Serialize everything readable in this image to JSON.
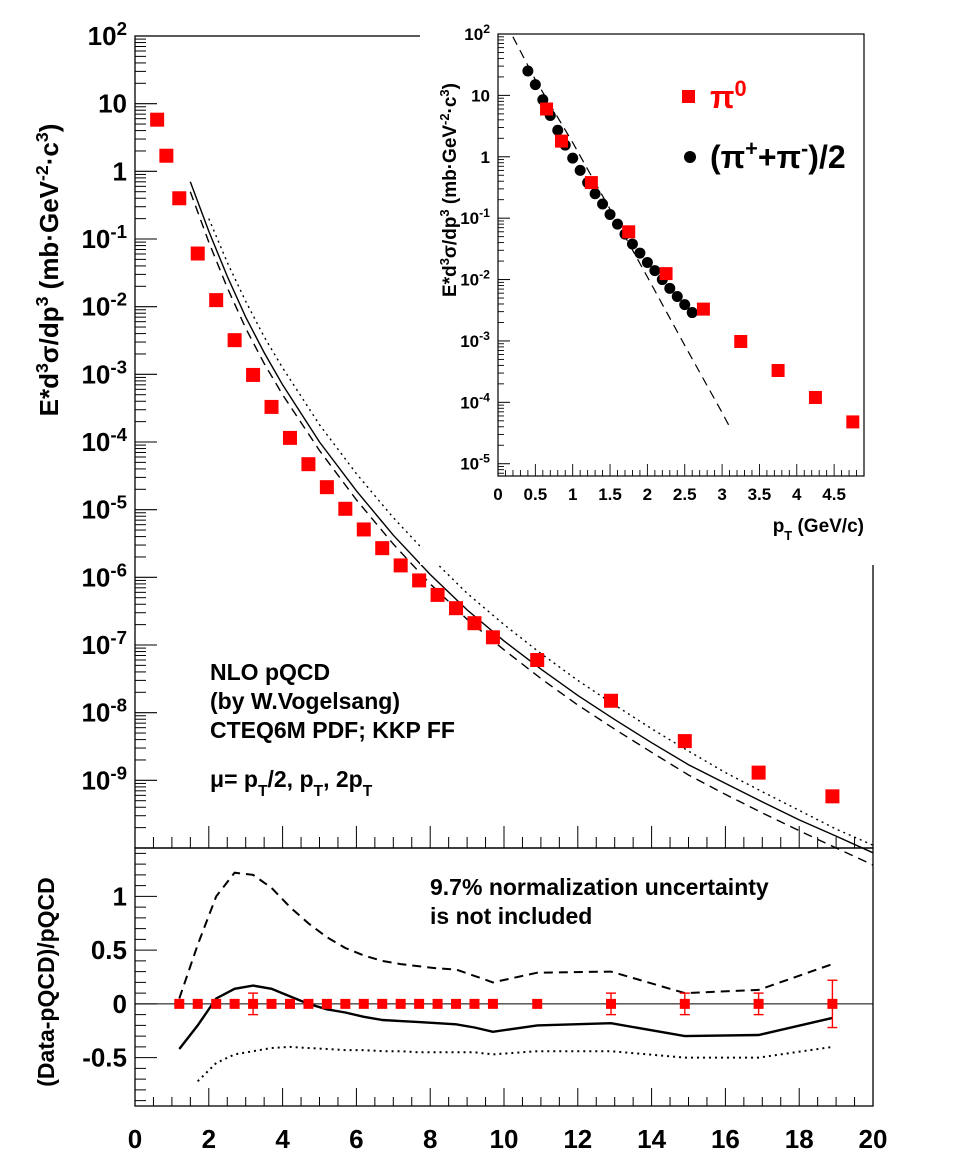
{
  "chart_data": [
    {
      "id": "main",
      "type": "scatter",
      "ylabel_parts": [
        "E*d",
        "3",
        "σ/dp",
        "3",
        " (mb·GeV",
        "-2",
        "·c",
        "3",
        ")"
      ],
      "xlim": [
        0,
        20
      ],
      "ylog": true,
      "ylim_exp": [
        -10,
        2
      ],
      "ytick_exponents": [
        -9,
        -8,
        -7,
        -6,
        -5,
        -4,
        -3,
        -2,
        -1,
        0,
        1,
        2
      ],
      "ytick_special": {
        "0": "1",
        "1": "10"
      },
      "ytick_base": "10",
      "series": [
        {
          "name": "π0",
          "marker": "square",
          "color": "#ff0000",
          "x": [
            0.6,
            0.85,
            1.2,
            1.7,
            2.2,
            2.7,
            3.2,
            3.7,
            4.2,
            4.7,
            5.2,
            5.7,
            6.2,
            6.7,
            7.2,
            7.7,
            8.2,
            8.7,
            9.2,
            9.7,
            10.9,
            12.9,
            14.9,
            16.9,
            18.9
          ],
          "y": [
            5.8,
            1.7,
            0.4,
            0.061,
            0.0125,
            0.0032,
            0.00098,
            0.00033,
            0.000115,
            4.7e-05,
            2.15e-05,
            1.03e-05,
            5.1e-06,
            2.7e-06,
            1.5e-06,
            9e-07,
            5.5e-07,
            3.5e-07,
            2.1e-07,
            1.3e-07,
            6e-08,
            1.5e-08,
            3.8e-09,
            1.3e-09,
            5.8e-10
          ]
        }
      ],
      "curves": [
        {
          "name": "pQCD mu=pT",
          "style": "solid",
          "x": [
            1.5,
            2,
            2.5,
            3,
            3.5,
            4,
            5,
            6,
            7,
            8,
            9,
            10,
            11,
            12,
            13,
            14,
            15,
            16,
            17,
            18,
            19,
            20
          ],
          "y": [
            0.7,
            0.13,
            0.028,
            0.007,
            0.0021,
            0.0007,
            0.0001,
            1.9e-05,
            4.2e-06,
            1.1e-06,
            3.3e-07,
            1.15e-07,
            4.4e-08,
            1.8e-08,
            7.9e-09,
            3.6e-09,
            1.7e-09,
            9e-10,
            4.8e-10,
            2.6e-10,
            1.5e-10,
            8.5e-11
          ]
        },
        {
          "name": "pQCD mu=2pT",
          "style": "dashed",
          "x": [
            1.5,
            2,
            2.5,
            3,
            3.5,
            4,
            5,
            6,
            7,
            8,
            9,
            10,
            11,
            12,
            13,
            14,
            15,
            16,
            17,
            18,
            19,
            20
          ],
          "y": [
            0.5,
            0.09,
            0.019,
            0.0048,
            0.00145,
            0.0005,
            7.5e-05,
            1.4e-05,
            3.1e-06,
            8e-07,
            2.4e-07,
            8.5e-08,
            3.2e-08,
            1.3e-08,
            5.7e-09,
            2.6e-09,
            1.2e-09,
            6.2e-10,
            3.3e-10,
            1.8e-10,
            1e-10,
            5.6e-11
          ]
        },
        {
          "name": "pQCD mu=pT/2",
          "style": "dotted",
          "x": [
            2,
            2.5,
            3,
            3.5,
            4,
            5,
            6,
            7,
            8,
            9,
            10,
            11,
            12,
            13,
            14,
            15,
            16,
            17,
            18,
            19,
            20
          ],
          "y": [
            0.2,
            0.045,
            0.012,
            0.0036,
            0.00125,
            0.00018,
            3.4e-05,
            7.6e-06,
            2e-06,
            5.8e-07,
            2e-07,
            7.5e-08,
            3e-08,
            1.3e-08,
            5.8e-09,
            2.7e-09,
            1.3e-09,
            6.8e-10,
            3.6e-10,
            1.9e-10,
            1.1e-10
          ]
        }
      ],
      "annotations": [
        "NLO pQCD",
        "(by W.Vogelsang)",
        "CTEQ6M PDF; KKP FF"
      ],
      "mu_line": {
        "mu": "μ",
        "eq": "= p",
        "s1": "T",
        "p1": "/2, p",
        "s2": "T",
        "p2": ", 2p",
        "s3": "T"
      }
    },
    {
      "id": "ratio",
      "type": "scatter",
      "ylabel": "(Data-pQCD)/pQCD",
      "xlim": [
        0,
        20
      ],
      "ylim": [
        -0.95,
        1.45
      ],
      "xticks": [
        0,
        2,
        4,
        6,
        8,
        10,
        12,
        14,
        16,
        18,
        20
      ],
      "yticks": [
        -0.5,
        0,
        0.5,
        1
      ],
      "ytick_labels": [
        "-0.5",
        "0",
        "0.5",
        "1"
      ],
      "note": [
        "9.7% normalization uncertainty",
        "is not included"
      ],
      "series": [
        {
          "name": "π0",
          "marker": "square",
          "color": "#ff0000",
          "x": [
            1.2,
            1.7,
            2.2,
            2.7,
            3.2,
            3.7,
            4.2,
            4.7,
            5.2,
            5.7,
            6.2,
            6.7,
            7.2,
            7.7,
            8.2,
            8.7,
            9.2,
            9.7,
            10.9,
            12.9,
            14.9,
            16.9,
            18.9
          ],
          "y": [
            0,
            0,
            0,
            0,
            0,
            0,
            0,
            0,
            0,
            0,
            0,
            0,
            0,
            0,
            0,
            0,
            0,
            0,
            0,
            0,
            0,
            0,
            0
          ],
          "err": [
            0,
            0,
            0,
            0,
            0.1,
            0,
            0,
            0,
            0,
            0,
            0,
            0,
            0,
            0,
            0,
            0,
            0,
            0,
            0,
            0.1,
            0.1,
            0.1,
            0.22
          ]
        }
      ],
      "curves": [
        {
          "name": "mu=2pT",
          "style": "dashed",
          "x": [
            1.2,
            1.7,
            2.2,
            2.7,
            3.2,
            3.7,
            4.2,
            4.7,
            5.2,
            5.7,
            6.2,
            6.7,
            7.2,
            7.7,
            8.2,
            8.7,
            9.2,
            9.7,
            10.9,
            12.9,
            14.9,
            16.9,
            18.9
          ],
          "y": [
            0.05,
            0.55,
            1.0,
            1.22,
            1.2,
            1.08,
            0.9,
            0.75,
            0.62,
            0.52,
            0.45,
            0.4,
            0.37,
            0.35,
            0.33,
            0.32,
            0.26,
            0.2,
            0.29,
            0.3,
            0.1,
            0.13,
            0.37
          ]
        },
        {
          "name": "mu=pT",
          "style": "solid",
          "x": [
            1.2,
            1.7,
            2.2,
            2.7,
            3.2,
            3.7,
            4.2,
            4.7,
            5.2,
            5.7,
            6.2,
            6.7,
            7.2,
            7.7,
            8.2,
            8.7,
            9.2,
            9.7,
            10.9,
            12.9,
            14.9,
            16.9,
            18.9
          ],
          "y": [
            -0.42,
            -0.2,
            0.05,
            0.14,
            0.17,
            0.14,
            0.07,
            0.0,
            -0.05,
            -0.08,
            -0.12,
            -0.15,
            -0.16,
            -0.17,
            -0.18,
            -0.19,
            -0.22,
            -0.26,
            -0.2,
            -0.18,
            -0.3,
            -0.29,
            -0.13
          ]
        },
        {
          "name": "mu=pT/2",
          "style": "dotted",
          "x": [
            1.7,
            2.2,
            2.7,
            3.2,
            3.7,
            4.2,
            4.7,
            5.2,
            5.7,
            6.2,
            6.7,
            7.2,
            7.7,
            8.2,
            8.7,
            9.2,
            9.7,
            10.9,
            12.9,
            14.9,
            16.9,
            18.9
          ],
          "y": [
            -0.72,
            -0.55,
            -0.47,
            -0.44,
            -0.41,
            -0.4,
            -0.41,
            -0.42,
            -0.43,
            -0.43,
            -0.44,
            -0.44,
            -0.45,
            -0.45,
            -0.45,
            -0.45,
            -0.47,
            -0.44,
            -0.44,
            -0.5,
            -0.5,
            -0.4
          ]
        }
      ]
    },
    {
      "id": "inset",
      "type": "scatter",
      "ylabel_parts": [
        "E*d",
        "3",
        "σ/dp",
        "3",
        " (mb·GeV",
        "-2",
        "·c",
        "3",
        ")"
      ],
      "xlabel_parts": [
        "p",
        "T",
        " (GeV/c)"
      ],
      "xlim": [
        0,
        4.9
      ],
      "xticks": [
        0,
        0.5,
        1,
        1.5,
        2,
        2.5,
        3,
        3.5,
        4,
        4.5
      ],
      "xtick_labels": [
        "0",
        "0.5",
        "1",
        "1.5",
        "2",
        "2.5",
        "3",
        "3.5",
        "4",
        "4.5"
      ],
      "ylog": true,
      "ylim_exp": [
        -5.2,
        2
      ],
      "ytick_exponents": [
        -5,
        -4,
        -3,
        -2,
        -1,
        0,
        1,
        2
      ],
      "ytick_special": {
        "0": "1",
        "1": "10"
      },
      "ytick_base": "10",
      "legend": [
        {
          "label_parts": [
            "π",
            "0"
          ],
          "marker": "square",
          "color": "#ff0000"
        },
        {
          "label_parts": [
            "(π",
            "+",
            "+π",
            "-",
            ")/2"
          ],
          "marker": "circle",
          "color": "#000000"
        }
      ],
      "series": [
        {
          "name": "π0",
          "marker": "square",
          "color": "#ff0000",
          "x": [
            0.65,
            0.85,
            1.25,
            1.75,
            2.25,
            2.75,
            3.25,
            3.75,
            4.25,
            4.75
          ],
          "y": [
            6,
            1.8,
            0.38,
            0.06,
            0.0125,
            0.0033,
            0.00098,
            0.00033,
            0.00012,
            4.8e-05
          ]
        },
        {
          "name": "(π+ + π-)/2",
          "marker": "circle",
          "color": "#000000",
          "x": [
            0.4,
            0.5,
            0.6,
            0.7,
            0.8,
            0.9,
            1.0,
            1.1,
            1.2,
            1.3,
            1.4,
            1.5,
            1.6,
            1.7,
            1.8,
            1.9,
            2.0,
            2.1,
            2.2,
            2.3,
            2.4,
            2.5,
            2.6
          ],
          "y": [
            25,
            15,
            8.5,
            4.7,
            2.7,
            1.55,
            0.95,
            0.6,
            0.38,
            0.25,
            0.17,
            0.115,
            0.08,
            0.055,
            0.038,
            0.027,
            0.019,
            0.014,
            0.01,
            0.0072,
            0.0053,
            0.0039,
            0.0029
          ]
        }
      ],
      "curves": [
        {
          "name": "exponential",
          "style": "dashed",
          "x": [
            0.2,
            0.5,
            1.0,
            1.5,
            2.0,
            2.5,
            3.0,
            3.1
          ],
          "y": [
            90,
            18,
            1.7,
            0.14,
            0.011,
            0.00085,
            6.8e-05,
            4e-05
          ]
        }
      ]
    }
  ]
}
